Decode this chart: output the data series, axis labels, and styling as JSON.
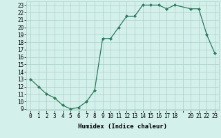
{
  "x": [
    0,
    1,
    2,
    3,
    4,
    5,
    6,
    7,
    8,
    9,
    10,
    11,
    12,
    13,
    14,
    15,
    16,
    17,
    18,
    20,
    21,
    22,
    23
  ],
  "y": [
    13,
    12,
    11,
    10.5,
    9.5,
    9,
    9.2,
    10,
    11.5,
    18.5,
    18.5,
    20,
    21.5,
    21.5,
    23,
    23,
    23,
    22.5,
    23,
    22.5,
    22.5,
    19,
    16.5
  ],
  "xlabel": "Humidex (Indice chaleur)",
  "xlim": [
    -0.5,
    23.5
  ],
  "ylim": [
    8.8,
    23.5
  ],
  "yticks": [
    9,
    10,
    11,
    12,
    13,
    14,
    15,
    16,
    17,
    18,
    19,
    20,
    21,
    22,
    23
  ],
  "xtick_labels": [
    "0",
    "1",
    "2",
    "3",
    "4",
    "5",
    "6",
    "7",
    "8",
    "9",
    "10",
    "11",
    "12",
    "13",
    "14",
    "15",
    "16",
    "17",
    "18",
    "",
    "20",
    "21",
    "22",
    "23"
  ],
  "line_color": "#2a7a5a",
  "marker_color": "#2a7a5a",
  "bg_color": "#d4f0eb",
  "grid_color": "#aacfc8",
  "label_fontsize": 6.5,
  "tick_fontsize": 5.5
}
